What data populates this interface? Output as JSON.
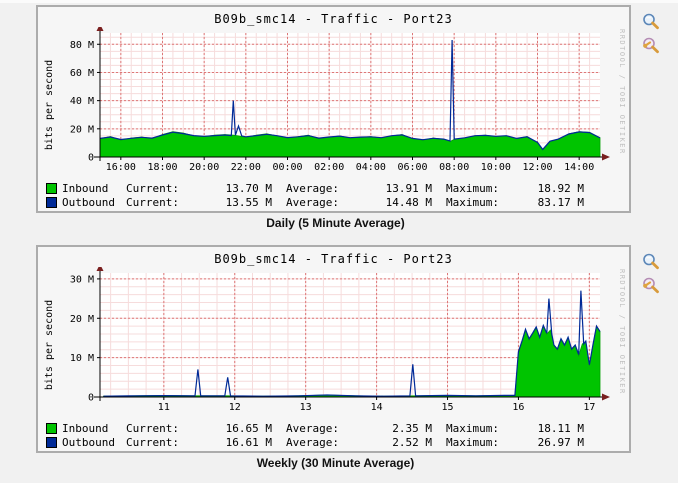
{
  "legend_labels": {
    "current": "Current:",
    "average": "Average:",
    "maximum": "Maximum:"
  },
  "colors": {
    "inbound_fill": "#00c400",
    "inbound_stroke": "#00a000",
    "outbound": "#002a97",
    "grid_minor": "#f6dcdc",
    "grid_major": "#dd7777",
    "axis": "#000000",
    "arrow": "#7a1f1f",
    "plot_bg": "#ffffff"
  },
  "panels": [
    {
      "icons": [
        "magnifier-zoom-icon",
        "magnifier-wrench-icon"
      ]
    },
    {
      "icons": [
        "magnifier-zoom-icon",
        "magnifier-wrench-icon"
      ]
    }
  ],
  "chart_data": [
    {
      "type": "area",
      "title": "B09b_smc14 - Traffic - Port23",
      "caption": "Daily (5 Minute Average)",
      "ylabel": "bits per second",
      "watermark": "RRDTOOL / TOBI OETIKER",
      "xlim": [
        0,
        24
      ],
      "ylim": [
        0,
        88
      ],
      "minor_x_step": 0.5,
      "minor_y_step": 5,
      "grid": true,
      "xticks": [
        {
          "x": 1,
          "label": "16:00"
        },
        {
          "x": 3,
          "label": "18:00"
        },
        {
          "x": 5,
          "label": "20:00"
        },
        {
          "x": 7,
          "label": "22:00"
        },
        {
          "x": 9,
          "label": "00:00"
        },
        {
          "x": 11,
          "label": "02:00"
        },
        {
          "x": 13,
          "label": "04:00"
        },
        {
          "x": 15,
          "label": "06:00"
        },
        {
          "x": 17,
          "label": "08:00"
        },
        {
          "x": 19,
          "label": "10:00"
        },
        {
          "x": 21,
          "label": "12:00"
        },
        {
          "x": 23,
          "label": "14:00"
        }
      ],
      "yticks": [
        {
          "y": 0,
          "label": "0"
        },
        {
          "y": 20,
          "label": "20 M"
        },
        {
          "y": 40,
          "label": "40 M"
        },
        {
          "y": 60,
          "label": "60 M"
        },
        {
          "y": 80,
          "label": "80 M"
        }
      ],
      "series": [
        {
          "name": "Inbound",
          "style": "area",
          "points": [
            [
              0,
              13
            ],
            [
              0.5,
              14.5
            ],
            [
              1,
              12
            ],
            [
              1.5,
              13.5
            ],
            [
              2,
              14.2
            ],
            [
              2.5,
              13
            ],
            [
              3,
              16
            ],
            [
              3.5,
              18
            ],
            [
              4,
              17
            ],
            [
              4.5,
              15
            ],
            [
              5,
              14.5
            ],
            [
              5.5,
              15.5
            ],
            [
              6,
              16
            ],
            [
              6.4,
              15.5
            ],
            [
              6.65,
              15
            ],
            [
              7,
              14
            ],
            [
              7.5,
              15.5
            ],
            [
              8,
              16.5
            ],
            [
              8.5,
              15
            ],
            [
              9,
              13.5
            ],
            [
              9.5,
              14.5
            ],
            [
              10,
              15.5
            ],
            [
              10.5,
              13
            ],
            [
              11,
              14
            ],
            [
              11.5,
              15
            ],
            [
              12,
              13.5
            ],
            [
              12.5,
              14
            ],
            [
              13,
              14.5
            ],
            [
              13.5,
              13.5
            ],
            [
              14,
              15
            ],
            [
              14.5,
              16
            ],
            [
              15,
              13
            ],
            [
              15.5,
              12
            ],
            [
              16,
              13.5
            ],
            [
              16.5,
              12.5
            ],
            [
              16.8,
              11
            ],
            [
              17,
              12.5
            ],
            [
              17.5,
              13.5
            ],
            [
              18,
              15
            ],
            [
              18.5,
              15.5
            ],
            [
              19,
              14.5
            ],
            [
              19.5,
              15
            ],
            [
              20,
              13
            ],
            [
              20.5,
              14.5
            ],
            [
              21,
              10
            ],
            [
              21.25,
              5
            ],
            [
              21.6,
              11
            ],
            [
              22,
              12.5
            ],
            [
              22.5,
              16.5
            ],
            [
              23,
              18
            ],
            [
              23.5,
              17.5
            ],
            [
              24,
              13.7
            ]
          ]
        },
        {
          "name": "Outbound",
          "style": "line",
          "points": [
            [
              0,
              13.2
            ],
            [
              0.5,
              14.2
            ],
            [
              1,
              12.4
            ],
            [
              1.5,
              13.3
            ],
            [
              2,
              14
            ],
            [
              2.5,
              13.4
            ],
            [
              3,
              15.6
            ],
            [
              3.5,
              17.6
            ],
            [
              4,
              16.6
            ],
            [
              4.5,
              15.2
            ],
            [
              5,
              14.7
            ],
            [
              5.5,
              15.2
            ],
            [
              6,
              15.6
            ],
            [
              6.3,
              15.2
            ],
            [
              6.4,
              40
            ],
            [
              6.5,
              15.5
            ],
            [
              6.65,
              22
            ],
            [
              6.8,
              15
            ],
            [
              7,
              14.3
            ],
            [
              7.5,
              15.2
            ],
            [
              8,
              16.1
            ],
            [
              8.5,
              15.1
            ],
            [
              9,
              13.8
            ],
            [
              9.5,
              14.3
            ],
            [
              10,
              15.2
            ],
            [
              10.5,
              13.4
            ],
            [
              11,
              14.2
            ],
            [
              11.5,
              14.8
            ],
            [
              12,
              13.7
            ],
            [
              12.5,
              14.1
            ],
            [
              13,
              14.3
            ],
            [
              13.5,
              13.7
            ],
            [
              14,
              15.1
            ],
            [
              14.5,
              15.7
            ],
            [
              15,
              13.2
            ],
            [
              15.5,
              12.3
            ],
            [
              16,
              13.3
            ],
            [
              16.5,
              12.7
            ],
            [
              16.8,
              11.4
            ],
            [
              16.9,
              83
            ],
            [
              17,
              12.7
            ],
            [
              17.5,
              13.6
            ],
            [
              18,
              15.1
            ],
            [
              18.5,
              15.3
            ],
            [
              19,
              14.7
            ],
            [
              19.5,
              15.1
            ],
            [
              20,
              13.2
            ],
            [
              20.5,
              14.3
            ],
            [
              21,
              10.4
            ],
            [
              21.25,
              5.4
            ],
            [
              21.6,
              11.2
            ],
            [
              22,
              12.7
            ],
            [
              22.5,
              16.3
            ],
            [
              23,
              17.8
            ],
            [
              23.5,
              17.3
            ],
            [
              24,
              13.55
            ]
          ]
        }
      ],
      "legend_rows": [
        {
          "name": "Inbound",
          "current": "13.70 M",
          "average": "13.91 M",
          "maximum": "18.92 M"
        },
        {
          "name": "Outbound",
          "current": "13.55 M",
          "average": "14.48 M",
          "maximum": "83.17 M"
        }
      ]
    },
    {
      "type": "area",
      "title": "B09b_smc14 - Traffic - Port23",
      "caption": "Weekly (30 Minute Average)",
      "ylabel": "bits per second",
      "watermark": "RRDTOOL / TOBI OETIKER",
      "xlim": [
        10.1,
        17.15
      ],
      "ylim": [
        0,
        31.5
      ],
      "minor_x_step": 0.25,
      "minor_y_step": 2,
      "grid": true,
      "xticks": [
        {
          "x": 11,
          "label": "11"
        },
        {
          "x": 12,
          "label": "12"
        },
        {
          "x": 13,
          "label": "13"
        },
        {
          "x": 14,
          "label": "14"
        },
        {
          "x": 15,
          "label": "15"
        },
        {
          "x": 16,
          "label": "16"
        },
        {
          "x": 17,
          "label": "17"
        }
      ],
      "yticks": [
        {
          "y": 0,
          "label": "0"
        },
        {
          "y": 10,
          "label": "10 M"
        },
        {
          "y": 20,
          "label": "20 M"
        },
        {
          "y": 30,
          "label": "30 M"
        }
      ],
      "series": [
        {
          "name": "Inbound",
          "style": "area",
          "points": [
            [
              10.15,
              0.2
            ],
            [
              10.6,
              0.3
            ],
            [
              11,
              0.4
            ],
            [
              11.4,
              0.3
            ],
            [
              11.9,
              0.3
            ],
            [
              12.4,
              0.2
            ],
            [
              12.9,
              0.3
            ],
            [
              13.3,
              0.5
            ],
            [
              13.7,
              0.3
            ],
            [
              14.1,
              0.2
            ],
            [
              14.6,
              0.3
            ],
            [
              15,
              0.4
            ],
            [
              15.4,
              0.3
            ],
            [
              15.8,
              0.4
            ],
            [
              15.95,
              0.4
            ],
            [
              16,
              11
            ],
            [
              16.05,
              14
            ],
            [
              16.1,
              17
            ],
            [
              16.15,
              14.5
            ],
            [
              16.2,
              16
            ],
            [
              16.25,
              17.5
            ],
            [
              16.3,
              15
            ],
            [
              16.35,
              18
            ],
            [
              16.4,
              16
            ],
            [
              16.45,
              17
            ],
            [
              16.5,
              13
            ],
            [
              16.55,
              12
            ],
            [
              16.6,
              14.5
            ],
            [
              16.65,
              13
            ],
            [
              16.7,
              15
            ],
            [
              16.75,
              12
            ],
            [
              16.8,
              13
            ],
            [
              16.85,
              10.5
            ],
            [
              16.9,
              13.5
            ],
            [
              16.95,
              14
            ],
            [
              17,
              8
            ],
            [
              17.05,
              13
            ],
            [
              17.1,
              18
            ],
            [
              17.15,
              16.65
            ]
          ]
        },
        {
          "name": "Outbound",
          "style": "line",
          "points": [
            [
              10.15,
              0.2
            ],
            [
              10.6,
              0.3
            ],
            [
              11,
              0.35
            ],
            [
              11.44,
              0.3
            ],
            [
              11.48,
              7
            ],
            [
              11.52,
              0.3
            ],
            [
              11.86,
              0.3
            ],
            [
              11.9,
              5
            ],
            [
              11.94,
              0.3
            ],
            [
              12.4,
              0.2
            ],
            [
              12.9,
              0.3
            ],
            [
              13.3,
              0.5
            ],
            [
              13.7,
              0.3
            ],
            [
              14.1,
              0.2
            ],
            [
              14.47,
              0.3
            ],
            [
              14.51,
              8.3
            ],
            [
              14.55,
              0.3
            ],
            [
              15,
              0.4
            ],
            [
              15.4,
              0.3
            ],
            [
              15.8,
              0.4
            ],
            [
              15.95,
              0.4
            ],
            [
              16,
              11.5
            ],
            [
              16.05,
              14.2
            ],
            [
              16.1,
              17.2
            ],
            [
              16.15,
              14.8
            ],
            [
              16.2,
              16.2
            ],
            [
              16.25,
              17.8
            ],
            [
              16.3,
              15.2
            ],
            [
              16.35,
              18.2
            ],
            [
              16.4,
              16.2
            ],
            [
              16.43,
              25
            ],
            [
              16.47,
              16
            ],
            [
              16.5,
              13.2
            ],
            [
              16.55,
              12.2
            ],
            [
              16.6,
              14.8
            ],
            [
              16.65,
              13.2
            ],
            [
              16.7,
              15.2
            ],
            [
              16.75,
              12.2
            ],
            [
              16.8,
              13.2
            ],
            [
              16.85,
              10.8
            ],
            [
              16.88,
              27
            ],
            [
              16.92,
              13.5
            ],
            [
              16.95,
              14.2
            ],
            [
              17,
              8.2
            ],
            [
              17.05,
              13.2
            ],
            [
              17.1,
              18
            ],
            [
              17.15,
              16.61
            ]
          ]
        }
      ],
      "legend_rows": [
        {
          "name": "Inbound",
          "current": "16.65 M",
          "average": "2.35 M",
          "maximum": "18.11 M"
        },
        {
          "name": "Outbound",
          "current": "16.61 M",
          "average": "2.52 M",
          "maximum": "26.97 M"
        }
      ]
    }
  ]
}
